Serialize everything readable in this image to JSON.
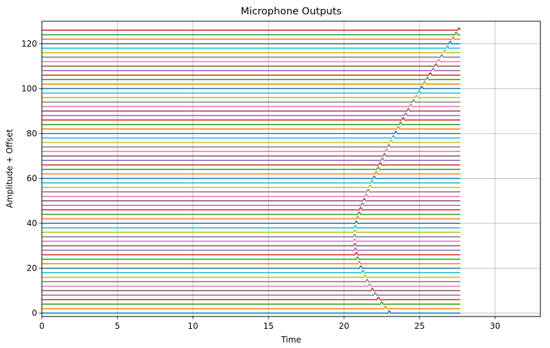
{
  "chart_data": {
    "type": "line",
    "title": "Microphone Outputs",
    "xlabel": "Time",
    "ylabel": "Amplitude + Offset",
    "xlim": [
      0,
      33
    ],
    "ylim": [
      -1.5,
      130
    ],
    "xticks": [
      0,
      5,
      10,
      15,
      20,
      25,
      30
    ],
    "yticks": [
      0,
      20,
      40,
      60,
      80,
      100,
      120
    ],
    "grid": true,
    "legend": "none",
    "series_count": 64,
    "offset_step": 2,
    "trace_end_time": 27.7,
    "pulse_amplitude": 1.0,
    "pulse_width": 0.08,
    "pulse_arrival_times": [
      23.0,
      22.75,
      22.5,
      22.28,
      22.07,
      21.88,
      21.7,
      21.53,
      21.38,
      21.24,
      21.11,
      21.0,
      20.9,
      20.82,
      20.76,
      20.72,
      20.7,
      20.7,
      20.72,
      20.76,
      20.82,
      20.9,
      21.0,
      21.1,
      21.22,
      21.34,
      21.47,
      21.6,
      21.73,
      21.86,
      22.0,
      22.13,
      22.26,
      22.4,
      22.54,
      22.68,
      22.82,
      22.97,
      23.12,
      23.27,
      23.43,
      23.59,
      23.75,
      23.92,
      24.09,
      24.26,
      24.43,
      24.61,
      24.79,
      24.97,
      25.15,
      25.33,
      25.52,
      25.71,
      25.9,
      26.09,
      26.28,
      26.47,
      26.66,
      26.85,
      27.04,
      27.23,
      27.42,
      27.62
    ],
    "colors": [
      "#1f77b4",
      "#ff7f0e",
      "#2ca02c",
      "#d62728",
      "#9467bd",
      "#8c564b",
      "#e377c2",
      "#7f7f7f",
      "#bcbd22",
      "#17becf"
    ]
  }
}
